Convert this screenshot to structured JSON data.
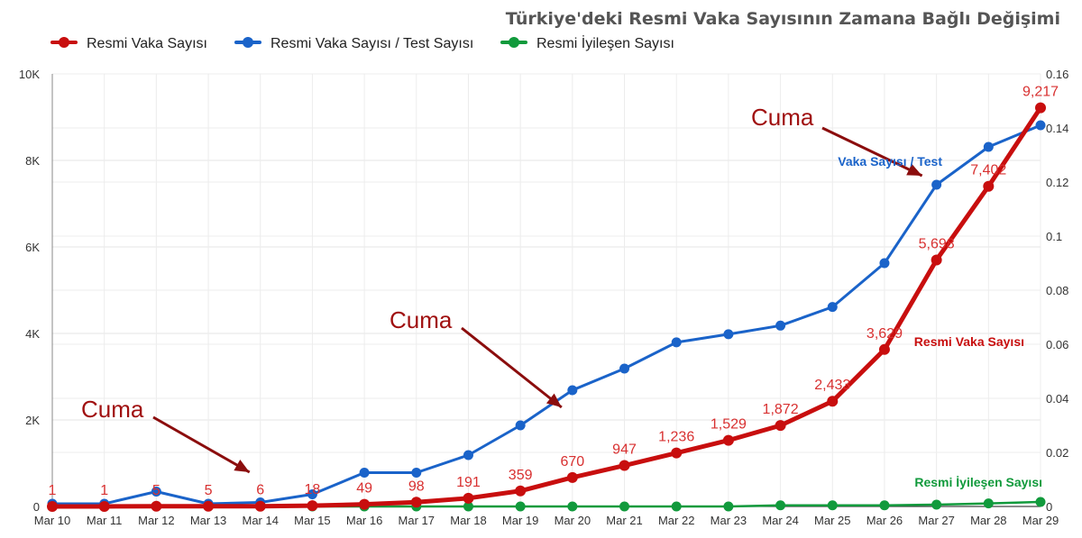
{
  "chart_data": {
    "type": "line",
    "title": "Türkiye'deki Resmi Vaka Sayısının Zamana Bağlı Değişimi",
    "categories": [
      "Mar 10",
      "Mar 11",
      "Mar 12",
      "Mar 13",
      "Mar 14",
      "Mar 15",
      "Mar 16",
      "Mar 17",
      "Mar 18",
      "Mar 19",
      "Mar 20",
      "Mar 21",
      "Mar 22",
      "Mar 23",
      "Mar 24",
      "Mar 25",
      "Mar 26",
      "Mar 27",
      "Mar 28",
      "Mar 29"
    ],
    "left_axis": {
      "ylim": [
        0,
        10000
      ],
      "ticks": [
        0,
        2000,
        4000,
        6000,
        8000,
        10000
      ],
      "tick_labels": [
        "0",
        "2K",
        "4K",
        "6K",
        "8K",
        "10K"
      ]
    },
    "right_axis": {
      "ylim": [
        0,
        0.16
      ],
      "ticks": [
        0,
        0.02,
        0.04,
        0.06,
        0.08,
        0.1,
        0.12,
        0.14,
        0.16
      ],
      "tick_labels": [
        "0",
        "0.02",
        "0.04",
        "0.06",
        "0.08",
        "0.1",
        "0.12",
        "0.14",
        "0.16"
      ]
    },
    "series": [
      {
        "name": "Resmi Vaka Sayısı",
        "axis": "left",
        "color": "#c80e0e",
        "values": [
          1,
          1,
          5,
          5,
          6,
          18,
          49,
          98,
          191,
          359,
          670,
          947,
          1236,
          1529,
          1872,
          2433,
          3629,
          5698,
          7402,
          9217
        ],
        "data_labels": [
          "1",
          "1",
          "5",
          "5",
          "6",
          "18",
          "49",
          "98",
          "191",
          "359",
          "670",
          "947",
          "1,236",
          "1,529",
          "1,872",
          "2,433",
          "3,629",
          "5,698",
          "7,402",
          "9,217"
        ]
      },
      {
        "name": "Resmi Vaka Sayısı / Test Sayısı",
        "axis": "right",
        "color": "#1a63c9",
        "values": [
          0.001,
          0.001,
          0.0055,
          0.001,
          0.0015,
          0.0045,
          0.0125,
          0.0125,
          0.019,
          0.03,
          0.043,
          0.051,
          0.0607,
          0.0637,
          0.0669,
          0.0738,
          0.09,
          0.119,
          0.133,
          0.141
        ]
      },
      {
        "name": "Resmi İyileşen Sayısı",
        "axis": "left",
        "color": "#119a3c",
        "values": [
          0,
          0,
          0,
          0,
          0,
          0,
          0,
          0,
          0,
          0,
          0,
          0,
          0,
          0,
          26,
          26,
          26,
          42,
          70,
          105
        ]
      }
    ],
    "legend_position": "top-left",
    "grid": true,
    "annotations": [
      {
        "text": "Cuma",
        "target_category": "Mar 14"
      },
      {
        "text": "Cuma",
        "target_category": "Mar 20"
      },
      {
        "text": "Cuma",
        "target_category": "Mar 27"
      }
    ],
    "series_labels": [
      {
        "text": "Vaka Sayısı / Test",
        "color": "#1a63c9"
      },
      {
        "text": "Resmi Vaka Sayısı",
        "color": "#c80e0e"
      },
      {
        "text": "Resmi İyileşen Sayısı",
        "color": "#119a3c"
      }
    ]
  }
}
